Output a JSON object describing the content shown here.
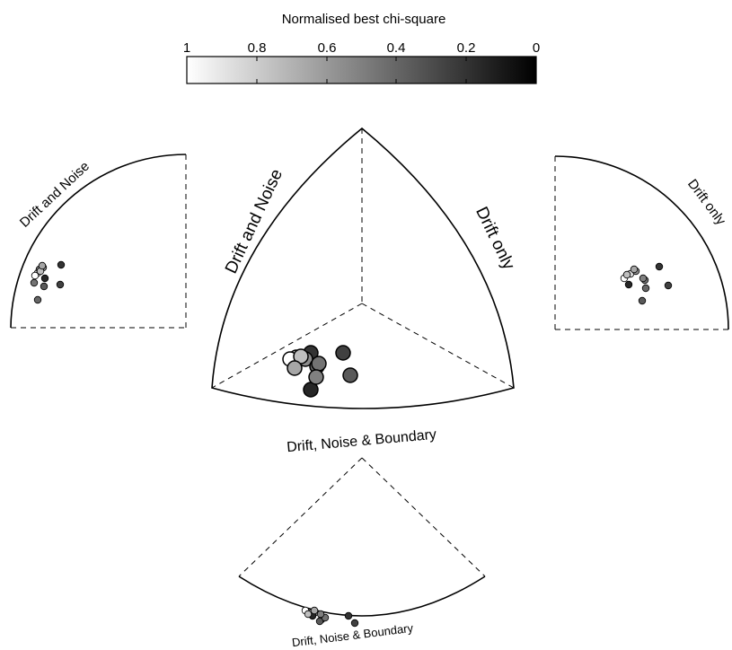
{
  "colorbar": {
    "title": "Normalised best chi-square",
    "ticks": [
      "1",
      "0.8",
      "0.6",
      "0.4",
      "0.2",
      "0"
    ]
  },
  "labels": {
    "center_left": "Drift and Noise",
    "center_right": "Drift only",
    "center_bottom": "Drift, Noise & Boundary",
    "left_panel": "Drift and Noise",
    "right_panel": "Drift only",
    "bottom_panel": "Drift, Noise & Boundary"
  },
  "chart_data": {
    "type": "scatter",
    "colorbar_range": [
      1,
      0
    ],
    "points_note": "",
    "center_points": [
      {
        "v": 0.85
      },
      {
        "v": 0.2
      },
      {
        "v": 0.55
      },
      {
        "v": 0.4
      },
      {
        "v": 0.25
      },
      {
        "v": 0.35
      },
      {
        "v": 0.45
      },
      {
        "v": 0.15
      },
      {
        "v": 0.5
      },
      {
        "v": 1.0
      },
      {
        "v": 0.75
      },
      {
        "v": 0.65
      }
    ]
  }
}
